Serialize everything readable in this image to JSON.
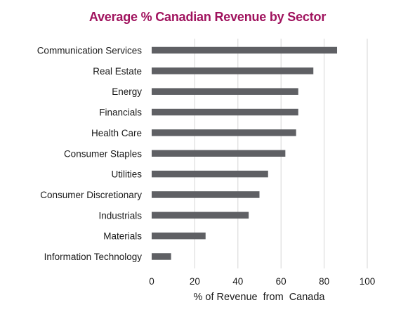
{
  "colors": {
    "title": "#a0135e",
    "bar": "#5f6064",
    "grid": "#d6d6d6",
    "text": "#1a1a1a"
  },
  "chart_data": {
    "type": "bar",
    "orientation": "horizontal",
    "title": "Average % Canadian Revenue by Sector",
    "xlabel": "% of Revenue  from  Canada",
    "ylabel": "",
    "categories": [
      "Communication Services",
      "Real Estate",
      "Energy",
      "Financials",
      "Health Care",
      "Consumer Staples",
      "Utilities",
      "Consumer Discretionary",
      "Industrials",
      "Materials",
      "Information Technology"
    ],
    "values": [
      86,
      75,
      68,
      68,
      67,
      62,
      54,
      50,
      45,
      25,
      9
    ],
    "xlim": [
      0,
      100
    ],
    "xticks": [
      "0",
      "20",
      "40",
      "60",
      "80",
      "100"
    ],
    "grid": "vertical",
    "legend": "none"
  }
}
